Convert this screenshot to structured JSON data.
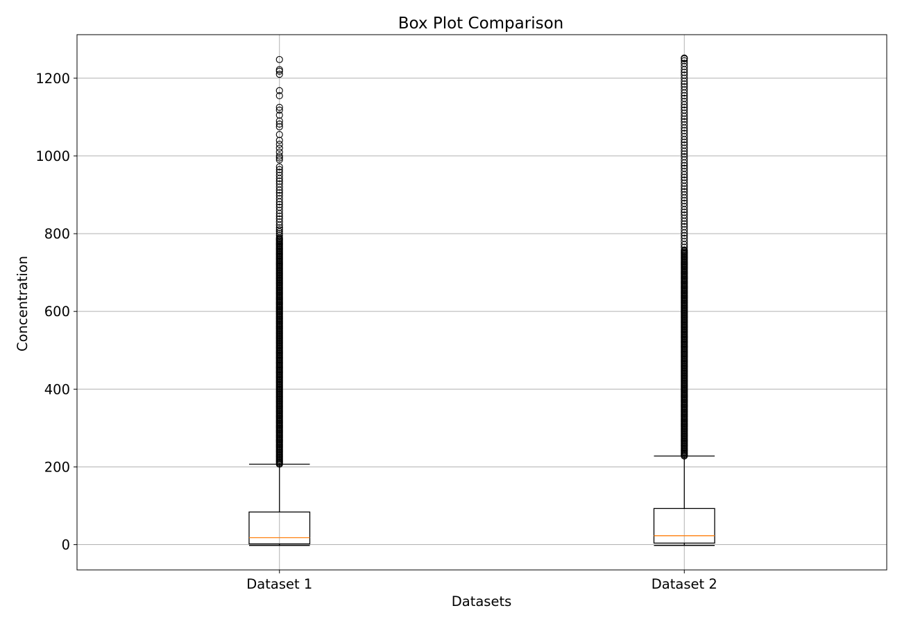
{
  "chart_data": {
    "type": "boxplot",
    "title": "Box Plot Comparison",
    "xlabel": "Datasets",
    "ylabel": "Concentration",
    "ylim": [
      -65,
      1312
    ],
    "yticks": [
      0,
      200,
      400,
      600,
      800,
      1000,
      1200
    ],
    "grid": true,
    "categories": [
      "Dataset 1",
      "Dataset 2"
    ],
    "boxes": [
      {
        "name": "Dataset 1",
        "whisker_low": -2,
        "q1": 2,
        "median": 18,
        "q3": 84,
        "whisker_high": 207,
        "outlier_dense_range": [
          207,
          790
        ],
        "outliers_sparse": [
          795,
          800,
          805,
          810,
          815,
          822,
          830,
          838,
          845,
          852,
          860,
          868,
          875,
          882,
          890,
          898,
          905,
          912,
          920,
          928,
          935,
          942,
          950,
          958,
          965,
          972,
          990,
          995,
          1000,
          1010,
          1020,
          1030,
          1040,
          1055,
          1075,
          1082,
          1090,
          1105,
          1118,
          1125,
          1155,
          1168,
          1210,
          1218,
          1222,
          1248
        ]
      },
      {
        "name": "Dataset 2",
        "whisker_low": -2,
        "q1": 4,
        "median": 23,
        "q3": 93,
        "whisker_high": 228,
        "outlier_dense_range": [
          228,
          760
        ],
        "outliers_sparse": [
          765,
          772,
          780,
          788,
          795,
          802,
          810,
          818,
          825,
          832,
          840,
          848,
          855,
          862,
          870,
          878,
          885,
          892,
          900,
          908,
          915,
          922,
          930,
          938,
          945,
          952,
          960,
          968,
          975,
          982,
          990,
          998,
          1005,
          1012,
          1020,
          1028,
          1035,
          1042,
          1050,
          1058,
          1065,
          1072,
          1080,
          1088,
          1095,
          1102,
          1110,
          1118,
          1125,
          1132,
          1140,
          1148,
          1155,
          1162,
          1170,
          1178,
          1185,
          1192,
          1200,
          1208,
          1215,
          1222,
          1230,
          1238,
          1245,
          1250,
          1252
        ]
      }
    ],
    "colors": {
      "median": "#ff7f0e",
      "box": "#000000",
      "grid": "#b0b0b0"
    }
  }
}
